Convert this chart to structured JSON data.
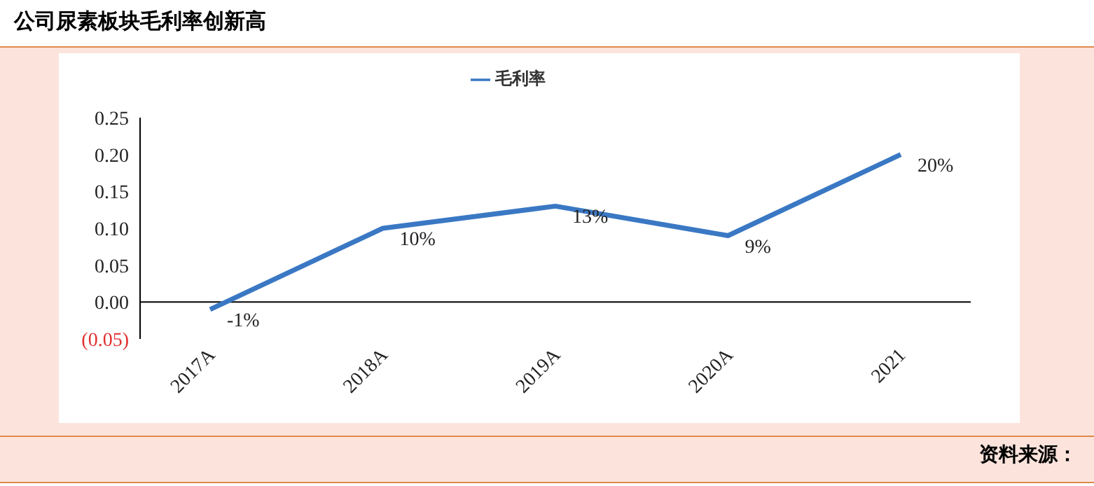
{
  "chart_data": {
    "type": "line",
    "title": "公司尿素板块毛利率创新高",
    "categories": [
      "2017A",
      "2018A",
      "2019A",
      "2020A",
      "2021"
    ],
    "series": [
      {
        "name": "毛利率",
        "color": "#3a78c4",
        "values": [
          -0.01,
          0.1,
          0.13,
          0.09,
          0.2
        ],
        "value_labels": [
          "-1%",
          "10%",
          "13%",
          "9%",
          "20%"
        ]
      }
    ],
    "ylim": [
      -0.05,
      0.25
    ],
    "yticks": [
      {
        "value": -0.05,
        "label": "(0.05)"
      },
      {
        "value": 0,
        "label": "0.00"
      },
      {
        "value": 0.05,
        "label": "0.05"
      },
      {
        "value": 0.1,
        "label": "0.10"
      },
      {
        "value": 0.15,
        "label": "0.15"
      },
      {
        "value": 0.2,
        "label": "0.20"
      },
      {
        "value": 0.25,
        "label": "0.25"
      }
    ],
    "grid": false,
    "legend": "top",
    "marker": "none",
    "line_style": "solid",
    "annotations": [
      "资料来源："
    ]
  }
}
